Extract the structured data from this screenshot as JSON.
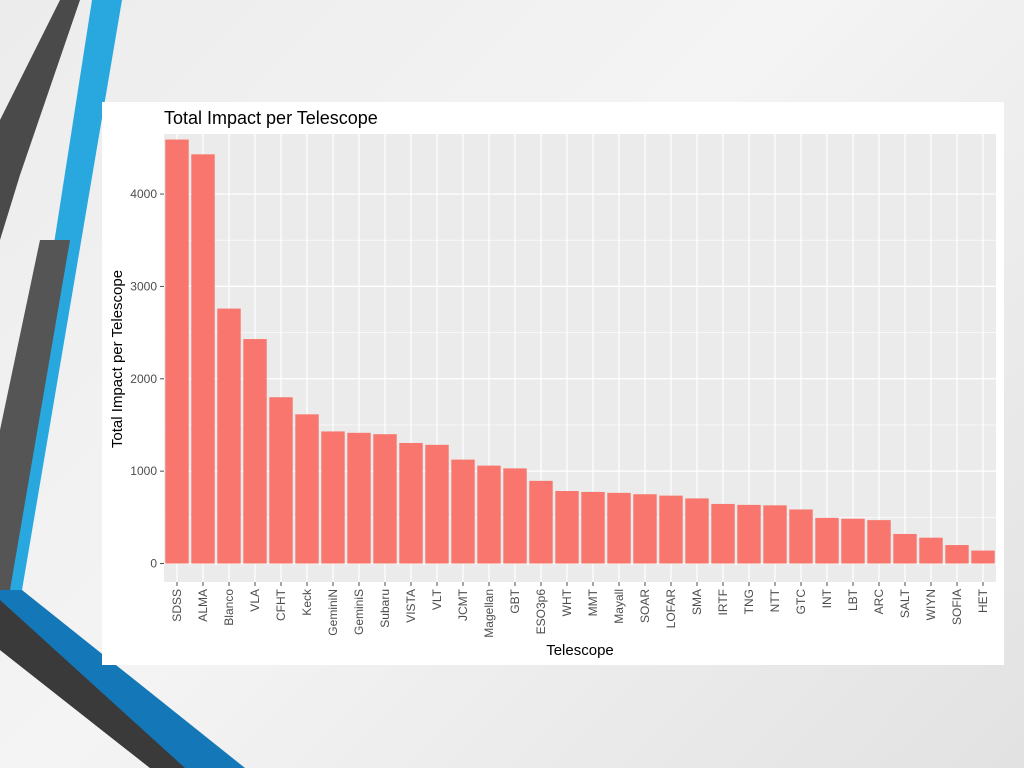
{
  "colors": {
    "bar": "#F8766D",
    "panel_bg": "#EBEBEB",
    "grid_major": "#FFFFFF",
    "tick": "#4D4D4D",
    "slide_dark": "#4A4A4A",
    "slide_blue": "#29A8E0",
    "slide_blue_dark": "#1478B8"
  },
  "chart_data": {
    "type": "bar",
    "title": "Total Impact per Telescope",
    "xlabel": "Telescope",
    "ylabel": "Total Impact per Telescope",
    "ylim": [
      -200,
      4650
    ],
    "yticks": [
      0,
      1000,
      2000,
      3000,
      4000
    ],
    "grid": true,
    "legend": "none",
    "categories": [
      "SDSS",
      "ALMA",
      "Blanco",
      "VLA",
      "CFHT",
      "Keck",
      "GeminiN",
      "GeminiS",
      "Subaru",
      "VISTA",
      "VLT",
      "JCMT",
      "Magellan",
      "GBT",
      "ESO3p6",
      "WHT",
      "MMT",
      "Mayall",
      "SOAR",
      "LOFAR",
      "SMA",
      "IRTF",
      "TNG",
      "NTT",
      "GTC",
      "INT",
      "LBT",
      "ARC",
      "SALT",
      "WIYN",
      "SOFIA",
      "HET"
    ],
    "values": [
      4590,
      4430,
      2760,
      2430,
      1800,
      1615,
      1430,
      1415,
      1400,
      1305,
      1285,
      1125,
      1060,
      1030,
      895,
      785,
      775,
      765,
      750,
      735,
      705,
      645,
      635,
      630,
      585,
      495,
      485,
      470,
      320,
      280,
      200,
      140
    ]
  }
}
